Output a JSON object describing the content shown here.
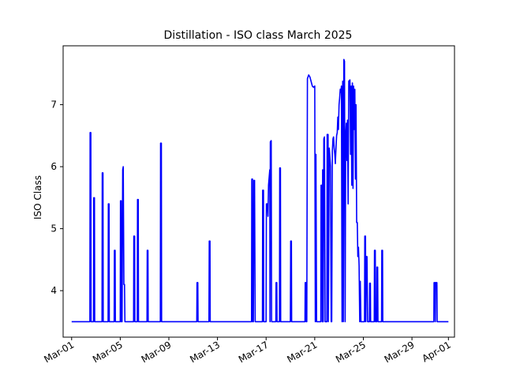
{
  "chart_data": {
    "type": "line",
    "title": "Distillation - ISO class March 2025",
    "ylabel": "ISO Class",
    "xlabel": "",
    "x_unit": "day of March 2025 (1 = Mar-01 00:00)",
    "xlim": [
      0.3,
      32.5
    ],
    "ylim": [
      3.25,
      7.95
    ],
    "grid": false,
    "line_color": "#0000ff",
    "y_ticks": [
      4,
      5,
      6,
      7
    ],
    "x_ticks": [
      {
        "value": 1,
        "label": "Mar-01"
      },
      {
        "value": 5,
        "label": "Mar-05"
      },
      {
        "value": 9,
        "label": "Mar-09"
      },
      {
        "value": 13,
        "label": "Mar-13"
      },
      {
        "value": 17,
        "label": "Mar-17"
      },
      {
        "value": 21,
        "label": "Mar-21"
      },
      {
        "value": 25,
        "label": "Mar-25"
      },
      {
        "value": 29,
        "label": "Mar-29"
      },
      {
        "value": 32,
        "label": "Apr-01"
      }
    ],
    "baseline": 3.5,
    "series": [
      {
        "points": [
          [
            1.0,
            3.5
          ],
          [
            2.5,
            3.5
          ],
          [
            2.52,
            6.55
          ],
          [
            2.58,
            6.55
          ],
          [
            2.6,
            3.5
          ],
          [
            2.8,
            3.5
          ],
          [
            2.82,
            5.5
          ],
          [
            2.88,
            5.5
          ],
          [
            2.9,
            3.5
          ],
          [
            3.5,
            3.5
          ],
          [
            3.52,
            5.9
          ],
          [
            3.58,
            5.9
          ],
          [
            3.6,
            3.5
          ],
          [
            4.0,
            3.5
          ],
          [
            4.02,
            5.4
          ],
          [
            4.08,
            5.4
          ],
          [
            4.1,
            3.5
          ],
          [
            4.5,
            3.5
          ],
          [
            4.52,
            4.65
          ],
          [
            4.58,
            4.65
          ],
          [
            4.6,
            3.5
          ],
          [
            5.0,
            3.5
          ],
          [
            5.02,
            5.45
          ],
          [
            5.08,
            5.45
          ],
          [
            5.1,
            3.5
          ],
          [
            5.15,
            3.5
          ],
          [
            5.2,
            5.95
          ],
          [
            5.25,
            6.0
          ],
          [
            5.3,
            4.1
          ],
          [
            5.35,
            4.1
          ],
          [
            5.38,
            3.5
          ],
          [
            6.1,
            3.5
          ],
          [
            6.12,
            4.88
          ],
          [
            6.18,
            4.88
          ],
          [
            6.2,
            3.5
          ],
          [
            6.4,
            3.5
          ],
          [
            6.42,
            5.47
          ],
          [
            6.48,
            5.47
          ],
          [
            6.5,
            3.5
          ],
          [
            7.2,
            3.5
          ],
          [
            7.22,
            4.65
          ],
          [
            7.28,
            4.65
          ],
          [
            7.3,
            3.5
          ],
          [
            8.3,
            3.5
          ],
          [
            8.32,
            6.38
          ],
          [
            8.38,
            6.38
          ],
          [
            8.4,
            3.5
          ],
          [
            11.3,
            3.5
          ],
          [
            11.32,
            4.13
          ],
          [
            11.38,
            4.13
          ],
          [
            11.4,
            3.5
          ],
          [
            12.3,
            3.5
          ],
          [
            12.32,
            4.8
          ],
          [
            12.38,
            4.8
          ],
          [
            12.4,
            3.5
          ],
          [
            15.8,
            3.5
          ],
          [
            15.82,
            5.8
          ],
          [
            15.88,
            5.8
          ],
          [
            15.9,
            3.5
          ],
          [
            15.95,
            3.5
          ],
          [
            16.0,
            5.78
          ],
          [
            16.05,
            5.78
          ],
          [
            16.1,
            3.5
          ],
          [
            16.7,
            3.5
          ],
          [
            16.72,
            5.62
          ],
          [
            16.78,
            5.62
          ],
          [
            16.8,
            3.5
          ],
          [
            17.0,
            3.5
          ],
          [
            17.02,
            5.4
          ],
          [
            17.1,
            5.4
          ],
          [
            17.15,
            5.2
          ],
          [
            17.2,
            5.7
          ],
          [
            17.3,
            5.95
          ],
          [
            17.32,
            3.5
          ],
          [
            17.35,
            6.4
          ],
          [
            17.42,
            6.42
          ],
          [
            17.45,
            3.5
          ],
          [
            17.8,
            3.5
          ],
          [
            17.82,
            4.13
          ],
          [
            17.88,
            4.13
          ],
          [
            17.9,
            3.5
          ],
          [
            18.1,
            3.5
          ],
          [
            18.12,
            5.98
          ],
          [
            18.18,
            5.98
          ],
          [
            18.2,
            3.5
          ],
          [
            19.0,
            3.5
          ],
          [
            19.02,
            4.8
          ],
          [
            19.08,
            4.8
          ],
          [
            19.1,
            3.5
          ],
          [
            20.2,
            3.5
          ],
          [
            20.22,
            4.13
          ],
          [
            20.28,
            4.13
          ],
          [
            20.3,
            3.5
          ],
          [
            20.35,
            3.5
          ],
          [
            20.4,
            7.42
          ],
          [
            20.5,
            7.48
          ],
          [
            20.6,
            7.45
          ],
          [
            20.7,
            7.38
          ],
          [
            20.8,
            7.3
          ],
          [
            20.9,
            7.28
          ],
          [
            21.0,
            7.3
          ],
          [
            21.05,
            3.5
          ],
          [
            21.1,
            6.2
          ],
          [
            21.15,
            3.5
          ],
          [
            21.5,
            3.5
          ],
          [
            21.52,
            5.7
          ],
          [
            21.6,
            5.7
          ],
          [
            21.62,
            3.5
          ],
          [
            21.65,
            5.95
          ],
          [
            21.7,
            3.5
          ],
          [
            21.75,
            6.45
          ],
          [
            21.8,
            6.48
          ],
          [
            21.85,
            3.5
          ],
          [
            22.0,
            3.5
          ],
          [
            22.02,
            6.52
          ],
          [
            22.1,
            6.52
          ],
          [
            22.12,
            3.5
          ],
          [
            22.2,
            6.3
          ],
          [
            22.3,
            6.0
          ],
          [
            22.35,
            3.5
          ],
          [
            22.4,
            3.5
          ],
          [
            22.45,
            6.25
          ],
          [
            22.5,
            6.45
          ],
          [
            22.55,
            6.48
          ],
          [
            22.6,
            6.3
          ],
          [
            22.65,
            6.2
          ],
          [
            22.7,
            6.05
          ],
          [
            22.75,
            6.3
          ],
          [
            22.8,
            6.5
          ],
          [
            22.85,
            6.55
          ],
          [
            22.9,
            6.8
          ],
          [
            22.95,
            6.6
          ],
          [
            23.0,
            7.0
          ],
          [
            23.05,
            7.1
          ],
          [
            23.1,
            7.25
          ],
          [
            23.15,
            7.2
          ],
          [
            23.2,
            7.3
          ],
          [
            23.25,
            3.5
          ],
          [
            23.3,
            7.38
          ],
          [
            23.35,
            3.5
          ],
          [
            23.4,
            7.73
          ],
          [
            23.45,
            7.7
          ],
          [
            23.5,
            3.5
          ],
          [
            23.55,
            6.5
          ],
          [
            23.6,
            6.7
          ],
          [
            23.65,
            6.1
          ],
          [
            23.7,
            6.75
          ],
          [
            23.75,
            5.4
          ],
          [
            23.8,
            7.38
          ],
          [
            23.85,
            7.39
          ],
          [
            23.9,
            7.4
          ],
          [
            23.95,
            6.2
          ],
          [
            24.0,
            7.3
          ],
          [
            24.05,
            5.7
          ],
          [
            24.1,
            7.35
          ],
          [
            24.15,
            5.65
          ],
          [
            24.2,
            7.3
          ],
          [
            24.25,
            6.6
          ],
          [
            24.3,
            7.25
          ],
          [
            24.35,
            5.8
          ],
          [
            24.4,
            7.0
          ],
          [
            24.45,
            5.1
          ],
          [
            24.5,
            5.1
          ],
          [
            24.55,
            4.55
          ],
          [
            24.6,
            4.7
          ],
          [
            24.65,
            4.4
          ],
          [
            24.7,
            3.5
          ],
          [
            24.75,
            4.15
          ],
          [
            24.8,
            3.5
          ],
          [
            25.1,
            3.5
          ],
          [
            25.12,
            4.88
          ],
          [
            25.18,
            4.88
          ],
          [
            25.2,
            3.5
          ],
          [
            25.25,
            4.55
          ],
          [
            25.3,
            4.55
          ],
          [
            25.35,
            3.5
          ],
          [
            25.5,
            3.5
          ],
          [
            25.52,
            4.12
          ],
          [
            25.58,
            4.12
          ],
          [
            25.6,
            3.5
          ],
          [
            25.9,
            3.5
          ],
          [
            25.92,
            4.65
          ],
          [
            25.98,
            4.65
          ],
          [
            26.0,
            3.5
          ],
          [
            26.1,
            3.5
          ],
          [
            26.12,
            4.38
          ],
          [
            26.18,
            4.38
          ],
          [
            26.2,
            3.5
          ],
          [
            26.5,
            3.5
          ],
          [
            26.52,
            4.65
          ],
          [
            26.58,
            4.65
          ],
          [
            26.6,
            3.5
          ],
          [
            30.8,
            3.5
          ],
          [
            30.82,
            4.13
          ],
          [
            30.9,
            4.13
          ],
          [
            30.92,
            3.5
          ],
          [
            30.95,
            4.13
          ],
          [
            31.05,
            4.13
          ],
          [
            31.07,
            3.5
          ],
          [
            32.0,
            3.5
          ]
        ]
      }
    ]
  }
}
